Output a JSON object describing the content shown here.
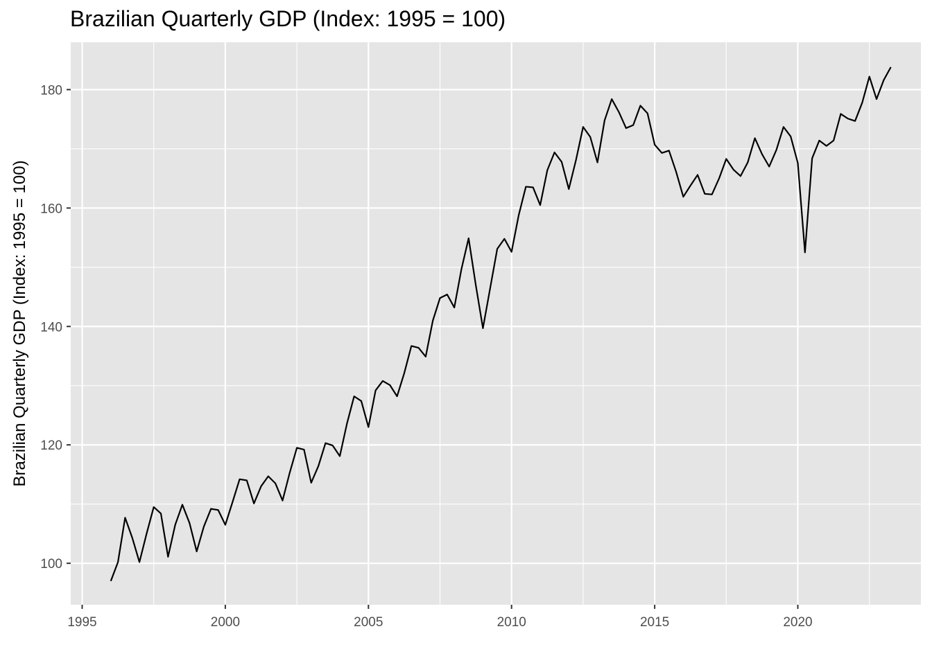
{
  "chart_data": {
    "type": "line",
    "title": "Brazilian Quarterly GDP (Index: 1995 = 100)",
    "xlabel": "",
    "ylabel": "Brazilian Quarterly GDP (Index: 1995 = 100)",
    "xlim": [
      1994.6,
      2024.3
    ],
    "ylim": [
      93,
      188
    ],
    "x_ticks": [
      1995,
      2000,
      2005,
      2010,
      2015,
      2020
    ],
    "x_tick_labels": [
      "1995",
      "2000",
      "2005",
      "2010",
      "2015",
      "2020"
    ],
    "y_ticks": [
      100,
      120,
      140,
      160,
      180
    ],
    "y_tick_labels": [
      "100",
      "120",
      "140",
      "160",
      "180"
    ],
    "grid": true,
    "background": "#e5e5e5",
    "grid_color": "#ffffff",
    "line_color": "#000000",
    "x": [
      1996.0,
      1996.25,
      1996.5,
      1996.75,
      1997.0,
      1997.25,
      1997.5,
      1997.75,
      1998.0,
      1998.25,
      1998.5,
      1998.75,
      1999.0,
      1999.25,
      1999.5,
      1999.75,
      2000.0,
      2000.25,
      2000.5,
      2000.75,
      2001.0,
      2001.25,
      2001.5,
      2001.75,
      2002.0,
      2002.25,
      2002.5,
      2002.75,
      2003.0,
      2003.25,
      2003.5,
      2003.75,
      2004.0,
      2004.25,
      2004.5,
      2004.75,
      2005.0,
      2005.25,
      2005.5,
      2005.75,
      2006.0,
      2006.25,
      2006.5,
      2006.75,
      2007.0,
      2007.25,
      2007.5,
      2007.75,
      2008.0,
      2008.25,
      2008.5,
      2008.75,
      2009.0,
      2009.25,
      2009.5,
      2009.75,
      2010.0,
      2010.25,
      2010.5,
      2010.75,
      2011.0,
      2011.25,
      2011.5,
      2011.75,
      2012.0,
      2012.25,
      2012.5,
      2012.75,
      2013.0,
      2013.25,
      2013.5,
      2013.75,
      2014.0,
      2014.25,
      2014.5,
      2014.75,
      2015.0,
      2015.25,
      2015.5,
      2015.75,
      2016.0,
      2016.25,
      2016.5,
      2016.75,
      2017.0,
      2017.25,
      2017.5,
      2017.75,
      2018.0,
      2018.25,
      2018.5,
      2018.75,
      2019.0,
      2019.25,
      2019.5,
      2019.75,
      2020.0,
      2020.25,
      2020.5,
      2020.75,
      2021.0,
      2021.25,
      2021.5,
      2021.75,
      2022.0,
      2022.25,
      2022.5,
      2022.75,
      2023.0,
      2023.25
    ],
    "series": [
      {
        "values": [
          97.0,
          100.2,
          107.7,
          104.3,
          100.2,
          105.0,
          109.5,
          108.4,
          101.1,
          106.5,
          109.9,
          106.8,
          102.0,
          106.2,
          109.2,
          109.0,
          106.5,
          110.3,
          114.2,
          114.0,
          110.1,
          113.0,
          114.7,
          113.5,
          110.6,
          115.3,
          119.5,
          119.2,
          113.6,
          116.4,
          120.3,
          119.9,
          118.1,
          123.6,
          128.2,
          127.4,
          123.0,
          129.2,
          130.8,
          130.1,
          128.2,
          132.1,
          136.7,
          136.4,
          134.9,
          141.0,
          144.8,
          145.4,
          143.2,
          149.7,
          154.9,
          147.0,
          139.7,
          146.4,
          153.1,
          154.8,
          152.6,
          158.8,
          163.6,
          163.5,
          160.5,
          166.4,
          169.4,
          167.8,
          163.2,
          168.1,
          173.7,
          172.0,
          167.7,
          174.8,
          178.4,
          176.2,
          173.5,
          174.0,
          177.3,
          176.0,
          170.7,
          169.3,
          169.7,
          166.1,
          161.9,
          163.8,
          165.6,
          162.4,
          162.3,
          165.0,
          168.3,
          166.5,
          165.4,
          167.7,
          171.8,
          169.1,
          167.0,
          169.8,
          173.7,
          172.1,
          167.6,
          152.5,
          168.4,
          171.4,
          170.5,
          171.4,
          175.9,
          175.1,
          174.7,
          177.8,
          182.2,
          178.4,
          181.6,
          183.8
        ]
      }
    ]
  }
}
